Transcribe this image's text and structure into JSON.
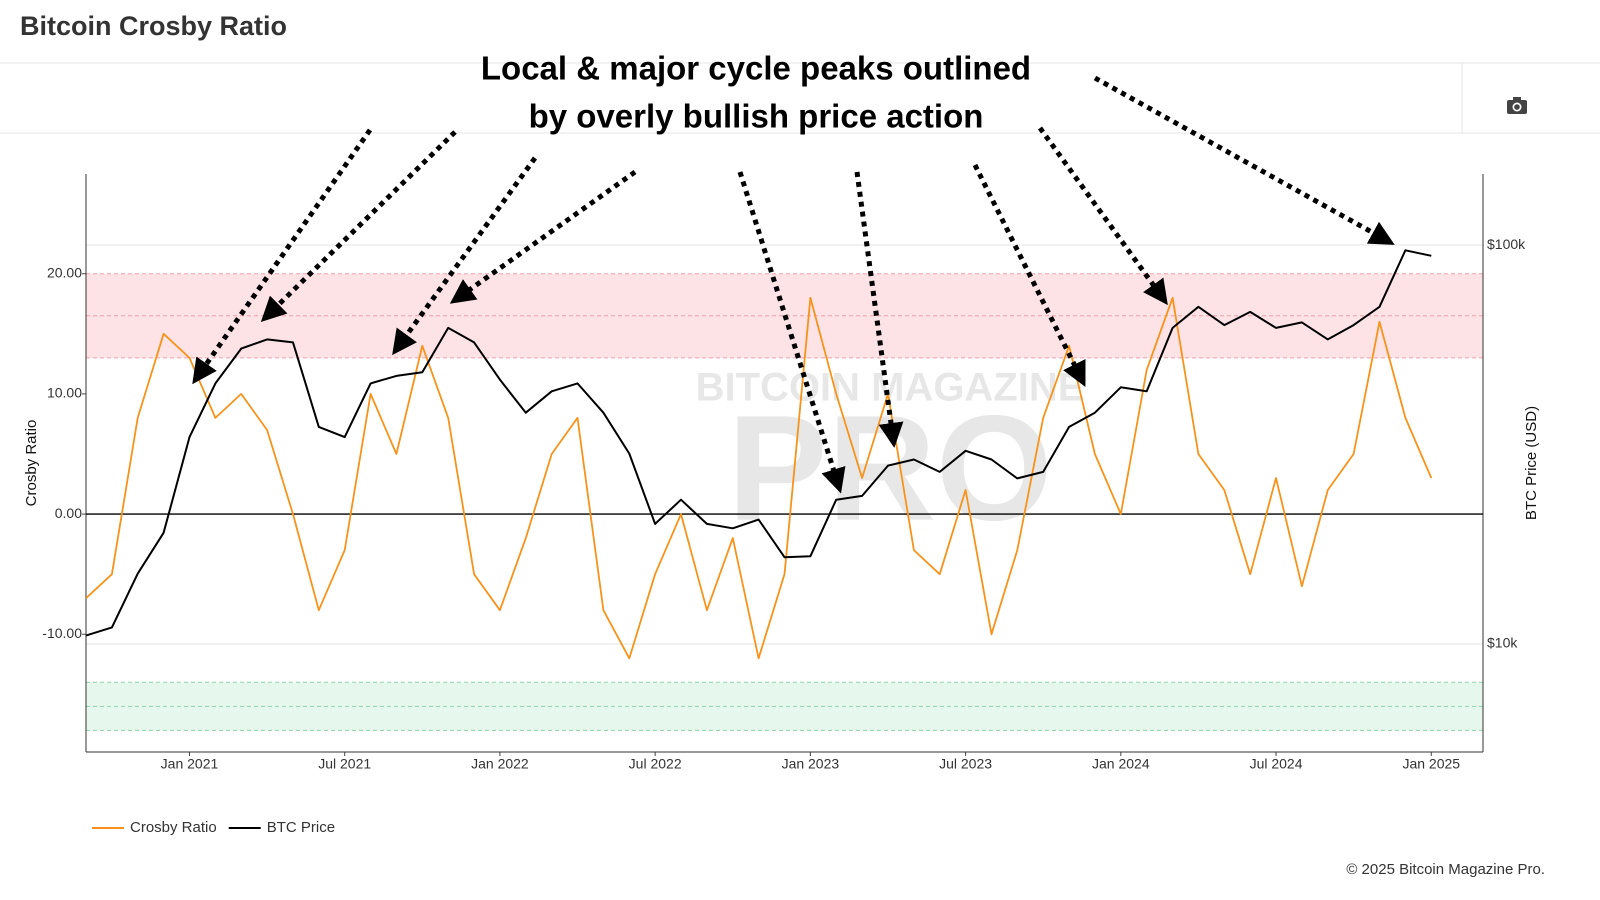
{
  "chart_data": {
    "type": "line",
    "title": "Bitcoin Crosby Ratio",
    "annotation": [
      "Local & major cycle peaks outlined",
      "by overly bullish price action"
    ],
    "watermark": [
      "BITCOIN MAGAZINE",
      "PRO"
    ],
    "ylabel": "Crosby Ratio",
    "y2label": "BTC Price (USD)",
    "footer": "© 2025 Bitcoin Magazine Pro.",
    "legend": "bottom-left",
    "x": [
      "2020-09",
      "2020-10",
      "2020-11",
      "2020-12",
      "2021-01",
      "2021-02",
      "2021-03",
      "2021-04",
      "2021-05",
      "2021-06",
      "2021-07",
      "2021-08",
      "2021-09",
      "2021-10",
      "2021-11",
      "2021-12",
      "2022-01",
      "2022-02",
      "2022-03",
      "2022-04",
      "2022-05",
      "2022-06",
      "2022-07",
      "2022-08",
      "2022-09",
      "2022-10",
      "2022-11",
      "2022-12",
      "2023-01",
      "2023-02",
      "2023-03",
      "2023-04",
      "2023-05",
      "2023-06",
      "2023-07",
      "2023-08",
      "2023-09",
      "2023-10",
      "2023-11",
      "2023-12",
      "2024-01",
      "2024-02",
      "2024-03",
      "2024-04",
      "2024-05",
      "2024-06",
      "2024-07",
      "2024-08",
      "2024-09",
      "2024-10",
      "2024-11",
      "2024-12",
      "2025-01"
    ],
    "series": [
      {
        "name": "Crosby Ratio",
        "color": "#f7931a",
        "axis": "y",
        "values": [
          -7,
          -5,
          8,
          15,
          13,
          8,
          10,
          7,
          0,
          -8,
          -3,
          10,
          5,
          14,
          8,
          -5,
          -8,
          -2,
          5,
          8,
          -8,
          -12,
          -5,
          0,
          -8,
          -2,
          -12,
          -5,
          18,
          10,
          3,
          10,
          -3,
          -5,
          2,
          -10,
          -3,
          8,
          14,
          5,
          0,
          12,
          18,
          5,
          2,
          -5,
          3,
          -6,
          2,
          5,
          16,
          8,
          3
        ]
      },
      {
        "name": "BTC Price",
        "color": "#000000",
        "axis": "y2",
        "values": [
          10500,
          11000,
          15000,
          19000,
          33000,
          45000,
          55000,
          58000,
          57000,
          35000,
          33000,
          45000,
          47000,
          48000,
          62000,
          57000,
          46000,
          38000,
          43000,
          45000,
          38000,
          30000,
          20000,
          23000,
          20000,
          19500,
          20500,
          16500,
          16600,
          23000,
          23500,
          28000,
          29000,
          27000,
          30500,
          29000,
          26000,
          27000,
          35000,
          38000,
          44000,
          43000,
          62000,
          70000,
          63000,
          68000,
          62000,
          64000,
          58000,
          63000,
          70000,
          97000,
          94000
        ]
      }
    ],
    "xlim": [
      "2020-09",
      "2025-03"
    ],
    "xticks": [
      {
        "value": "2021-01",
        "label": "Jan 2021"
      },
      {
        "value": "2021-07",
        "label": "Jul 2021"
      },
      {
        "value": "2022-01",
        "label": "Jan 2022"
      },
      {
        "value": "2022-07",
        "label": "Jul 2022"
      },
      {
        "value": "2023-01",
        "label": "Jan 2023"
      },
      {
        "value": "2023-07",
        "label": "Jul 2023"
      },
      {
        "value": "2024-01",
        "label": "Jan 2024"
      },
      {
        "value": "2024-07",
        "label": "Jul 2024"
      },
      {
        "value": "2025-01",
        "label": "Jan 2025"
      }
    ],
    "ylim": [
      -19.8,
      28.3
    ],
    "yticks": [
      {
        "value": -10,
        "label": "-10.00"
      },
      {
        "value": 0,
        "label": "0.00"
      },
      {
        "value": 10,
        "label": "10.00"
      },
      {
        "value": 20,
        "label": "20.00"
      }
    ],
    "y2lim": [
      5360,
      150700
    ],
    "y2ticks": [
      {
        "value": 10000,
        "label": "$10k"
      },
      {
        "value": 100000,
        "label": "$100k"
      }
    ],
    "y2log": true,
    "bands": [
      {
        "from": 13,
        "to": 20,
        "color": "#fde3e6"
      },
      {
        "from": -18,
        "to": -14,
        "color": "#e6f8ee"
      }
    ],
    "band_lines": [
      20,
      16.5,
      13,
      -14,
      -16,
      -18
    ]
  }
}
